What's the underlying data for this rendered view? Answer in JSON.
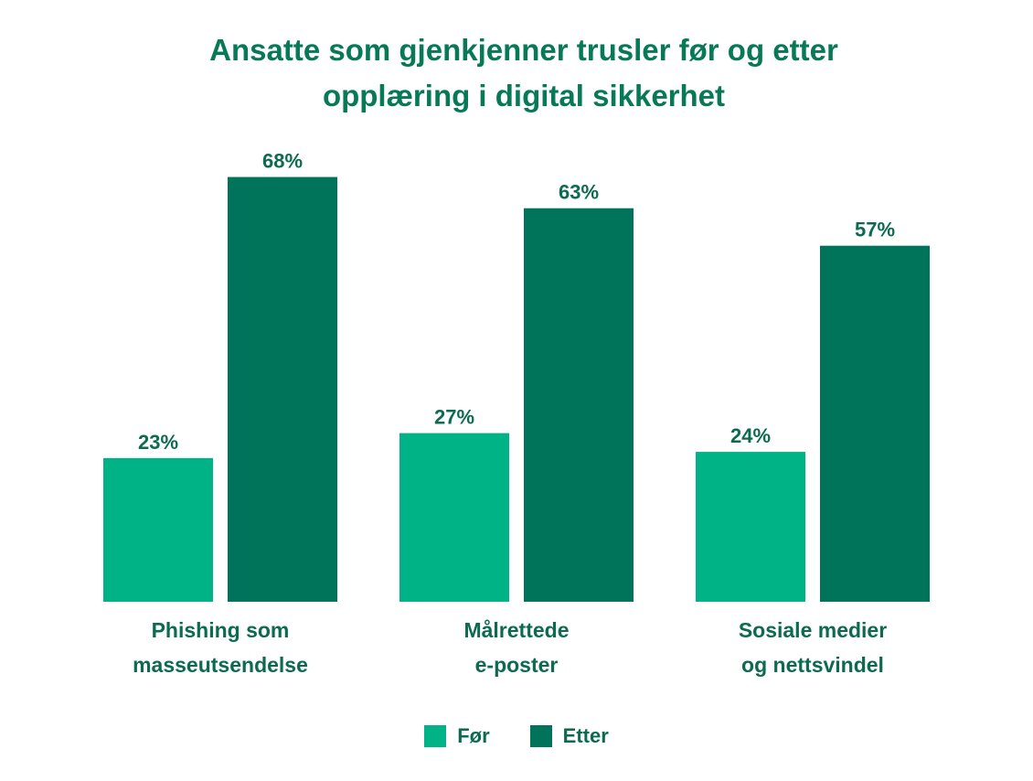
{
  "chart_data": {
    "type": "bar",
    "title_lines": [
      "Ansatte som gjenkjenner trusler før og etter",
      "opplæring i digital sikkerhet"
    ],
    "categories": [
      [
        "Phishing som",
        "masseutsendelse"
      ],
      [
        "Målrettede",
        "e-poster"
      ],
      [
        "Sosiale medier",
        "og nettsvindel"
      ]
    ],
    "series": [
      {
        "name": "Før",
        "values": [
          23,
          27,
          24
        ],
        "labels": [
          "23%",
          "27%",
          "24%"
        ],
        "color": "#00b386"
      },
      {
        "name": "Etter",
        "values": [
          68,
          63,
          57
        ],
        "labels": [
          "68%",
          "63%",
          "57%"
        ],
        "color": "#00745a"
      }
    ],
    "ylim": [
      0,
      100
    ],
    "grid": false,
    "legend_position": "bottom-center"
  },
  "colors": {
    "title": "#077a55",
    "labels": "#0c6b4e"
  }
}
